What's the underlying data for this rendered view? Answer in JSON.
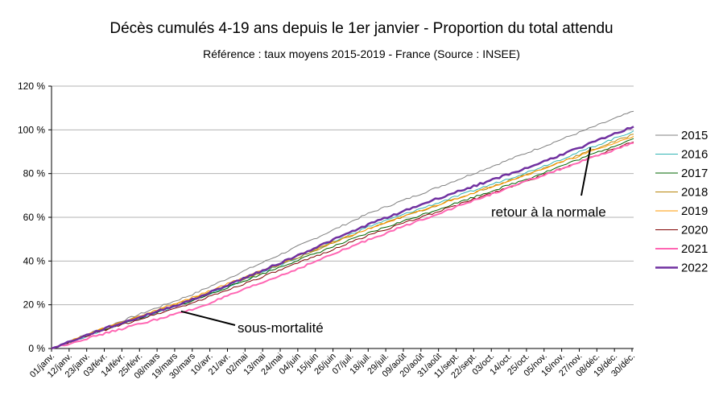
{
  "chart_data": {
    "type": "line",
    "title": "Décès cumulés 4-19 ans depuis le 1er janvier - Proportion du total attendu",
    "subtitle": "Référence : taux moyens 2015-2019 - France  (Source : INSEE)",
    "y_ticks": [
      "0 %",
      "20 %",
      "40 %",
      "60 %",
      "80 %",
      "100 %",
      "120 %"
    ],
    "ylim": [
      0,
      120
    ],
    "grid": true,
    "x_ticks": [
      "01/janv.",
      "12/janv.",
      "23/janv.",
      "03/févr.",
      "14/févr.",
      "25/févr.",
      "08/mars",
      "19/mars",
      "30/mars",
      "10/avr.",
      "21/avr.",
      "02/mai",
      "13/mai",
      "24/mai",
      "04/juin",
      "15/juin",
      "26/juin",
      "07/juil.",
      "18/juil.",
      "29/juil.",
      "09/août",
      "20/août",
      "31/août",
      "11/sept.",
      "22/sept.",
      "03/oct.",
      "14/oct.",
      "25/oct.",
      "05/nov.",
      "16/nov.",
      "27/nov.",
      "08/déc.",
      "19/déc.",
      "30/déc."
    ],
    "x_days": [
      1,
      365
    ],
    "legend_position": "right",
    "series": [
      {
        "name": "2015",
        "color": "#808080",
        "width": 1,
        "x": [
          1,
          30,
          90,
          150,
          200,
          240,
          300,
          365
        ],
        "y": [
          0,
          8.5,
          25,
          45,
          62,
          73,
          90,
          108.5
        ]
      },
      {
        "name": "2016",
        "color": "#33b5b5",
        "width": 1,
        "x": [
          1,
          30,
          90,
          150,
          200,
          240,
          300,
          365
        ],
        "y": [
          0,
          7.5,
          22,
          40,
          56,
          66,
          81,
          99.5
        ]
      },
      {
        "name": "2017",
        "color": "#006400",
        "width": 1,
        "x": [
          1,
          30,
          90,
          150,
          200,
          240,
          300,
          365
        ],
        "y": [
          0,
          7.8,
          22,
          39,
          53,
          63,
          78,
          96
        ]
      },
      {
        "name": "2018",
        "color": "#b8860b",
        "width": 1,
        "x": [
          1,
          30,
          90,
          150,
          200,
          240,
          300,
          365
        ],
        "y": [
          0,
          8.2,
          23,
          40,
          55,
          65,
          80,
          98
        ]
      },
      {
        "name": "2019",
        "color": "#ff9900",
        "width": 1,
        "x": [
          1,
          30,
          90,
          150,
          200,
          240,
          300,
          365
        ],
        "y": [
          0,
          8.3,
          23.5,
          41,
          55,
          65,
          80,
          97
        ]
      },
      {
        "name": "2020",
        "color": "#800000",
        "width": 1,
        "x": [
          1,
          30,
          90,
          150,
          200,
          240,
          300,
          365
        ],
        "y": [
          0,
          7.5,
          21,
          37.5,
          52,
          62,
          77,
          94.5
        ]
      },
      {
        "name": "2021",
        "color": "#ff66b3",
        "width": 2,
        "x": [
          1,
          30,
          90,
          150,
          200,
          240,
          300,
          365
        ],
        "y": [
          0,
          6,
          18,
          35,
          50,
          61,
          77,
          94
        ]
      },
      {
        "name": "2022",
        "color": "#7030a0",
        "width": 2.5,
        "x": [
          1,
          30,
          90,
          150,
          200,
          240,
          300,
          365
        ],
        "y": [
          0,
          8,
          22.5,
          41,
          57,
          68,
          83,
          101.5
        ]
      }
    ],
    "annotations": [
      {
        "text": "sous-mortalité",
        "arrow_to": {
          "x": 82,
          "y": 17
        }
      },
      {
        "text": "retour à la normale",
        "arrow_to": {
          "x": 338,
          "y": 92
        }
      }
    ]
  }
}
